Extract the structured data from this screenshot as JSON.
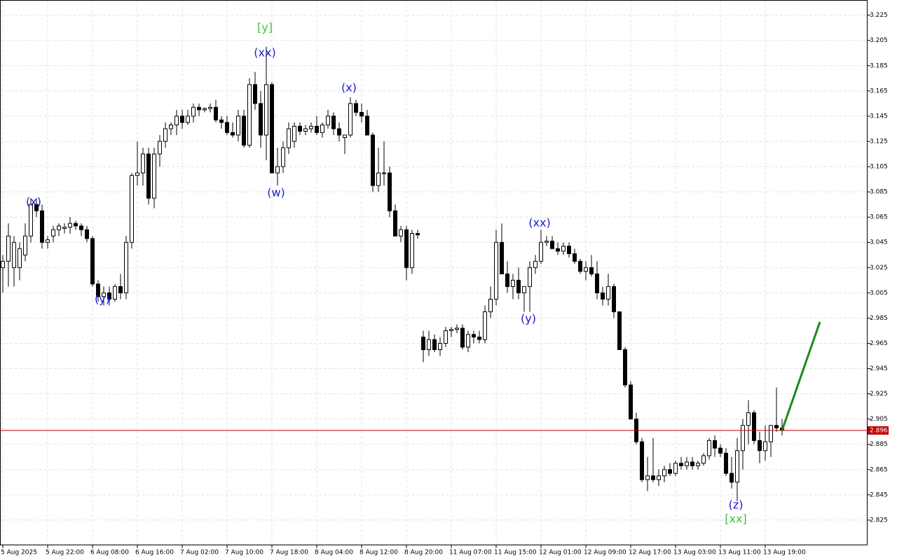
{
  "chart_data": {
    "type": "candlestick",
    "ylim": [
      2.805,
      3.237
    ],
    "yticks": [
      3.225,
      3.205,
      3.185,
      3.165,
      3.145,
      3.125,
      3.105,
      3.085,
      3.065,
      3.045,
      3.025,
      3.005,
      2.985,
      2.965,
      2.945,
      2.925,
      2.905,
      2.885,
      2.865,
      2.845,
      2.825
    ],
    "grid": true,
    "up_color": "#ffffff",
    "down_color": "#000000",
    "x_labels": [
      "5 Aug 2025",
      "5 Aug 22:00",
      "6 Aug 08:00",
      "6 Aug 16:00",
      "7 Aug 02:00",
      "7 Aug 10:00",
      "7 Aug 18:00",
      "8 Aug 04:00",
      "8 Aug 12:00",
      "8 Aug 20:00",
      "11 Aug 07:00",
      "11 Aug 15:00",
      "12 Aug 01:00",
      "12 Aug 09:00",
      "12 Aug 17:00",
      "13 Aug 03:00",
      "13 Aug 11:00",
      "13 Aug 19:00"
    ],
    "current_price": 2.896,
    "current_price_color": "#c00000",
    "forecast": {
      "values": [
        2.896,
        2.982
      ],
      "color": "#1a8a1a"
    },
    "annotations": [
      {
        "text": "(x)",
        "color": "#1a1ad6"
      },
      {
        "text": "(y)",
        "color": "#1a1ad6"
      },
      {
        "text": "[y]",
        "color": "#3cc43c"
      },
      {
        "text": "(xx)",
        "color": "#1a1ad6"
      },
      {
        "text": "(w)",
        "color": "#1a1ad6"
      },
      {
        "text": "(x)",
        "color": "#1a1ad6"
      },
      {
        "text": "(y)",
        "color": "#1a1ad6"
      },
      {
        "text": "(xx)",
        "color": "#1a1ad6"
      },
      {
        "text": "(z)",
        "color": "#1a1ad6"
      },
      {
        "text": "[xx]",
        "color": "#3cc43c"
      }
    ],
    "candles": [
      {
        "open": 3.025,
        "high": 3.035,
        "low": 3.005,
        "close": 3.03
      },
      {
        "open": 3.03,
        "high": 3.06,
        "low": 3.01,
        "close": 3.05
      },
      {
        "open": 3.025,
        "high": 3.05,
        "low": 3.01,
        "close": 3.045
      },
      {
        "open": 3.025,
        "high": 3.045,
        "low": 3.015,
        "close": 3.04
      },
      {
        "open": 3.035,
        "high": 3.06,
        "low": 3.03,
        "close": 3.05
      },
      {
        "open": 3.05,
        "high": 3.08,
        "low": 3.045,
        "close": 3.075
      },
      {
        "open": 3.075,
        "high": 3.08,
        "low": 3.065,
        "close": 3.07
      },
      {
        "open": 3.07,
        "high": 3.075,
        "low": 3.04,
        "close": 3.045
      },
      {
        "open": 3.045,
        "high": 3.05,
        "low": 3.04,
        "close": 3.047
      },
      {
        "open": 3.05,
        "high": 3.058,
        "low": 3.045,
        "close": 3.055
      },
      {
        "open": 3.055,
        "high": 3.06,
        "low": 3.05,
        "close": 3.058
      },
      {
        "open": 3.056,
        "high": 3.06,
        "low": 3.052,
        "close": 3.057
      },
      {
        "open": 3.057,
        "high": 3.065,
        "low": 3.052,
        "close": 3.06
      },
      {
        "open": 3.06,
        "high": 3.062,
        "low": 3.055,
        "close": 3.058
      },
      {
        "open": 3.058,
        "high": 3.06,
        "low": 3.05,
        "close": 3.055
      },
      {
        "open": 3.055,
        "high": 3.058,
        "low": 3.045,
        "close": 3.048
      },
      {
        "open": 3.048,
        "high": 3.05,
        "low": 3.01,
        "close": 3.012
      },
      {
        "open": 3.012,
        "high": 3.015,
        "low": 2.998,
        "close": 3.002
      },
      {
        "open": 3.002,
        "high": 3.01,
        "low": 2.995,
        "close": 3.005
      },
      {
        "open": 3.005,
        "high": 3.01,
        "low": 2.995,
        "close": 3.0
      },
      {
        "open": 3.0,
        "high": 3.012,
        "low": 2.998,
        "close": 3.01
      },
      {
        "open": 3.01,
        "high": 3.02,
        "low": 3.0,
        "close": 3.005
      },
      {
        "open": 3.005,
        "high": 3.05,
        "low": 3.0,
        "close": 3.045
      },
      {
        "open": 3.045,
        "high": 3.1,
        "low": 3.04,
        "close": 3.098
      },
      {
        "open": 3.098,
        "high": 3.125,
        "low": 3.09,
        "close": 3.1
      },
      {
        "open": 3.1,
        "high": 3.12,
        "low": 3.09,
        "close": 3.115
      },
      {
        "open": 3.115,
        "high": 3.12,
        "low": 3.075,
        "close": 3.08
      },
      {
        "open": 3.08,
        "high": 3.12,
        "low": 3.072,
        "close": 3.115
      },
      {
        "open": 3.115,
        "high": 3.13,
        "low": 3.105,
        "close": 3.125
      },
      {
        "open": 3.125,
        "high": 3.14,
        "low": 3.12,
        "close": 3.135
      },
      {
        "open": 3.135,
        "high": 3.14,
        "low": 3.13,
        "close": 3.138
      },
      {
        "open": 3.138,
        "high": 3.15,
        "low": 3.13,
        "close": 3.145
      },
      {
        "open": 3.145,
        "high": 3.15,
        "low": 3.135,
        "close": 3.14
      },
      {
        "open": 3.14,
        "high": 3.15,
        "low": 3.138,
        "close": 3.145
      },
      {
        "open": 3.145,
        "high": 3.155,
        "low": 3.14,
        "close": 3.152
      },
      {
        "open": 3.152,
        "high": 3.155,
        "low": 3.145,
        "close": 3.15
      },
      {
        "open": 3.15,
        "high": 3.152,
        "low": 3.148,
        "close": 3.151
      },
      {
        "open": 3.151,
        "high": 3.155,
        "low": 3.148,
        "close": 3.152
      },
      {
        "open": 3.152,
        "high": 3.158,
        "low": 3.14,
        "close": 3.142
      },
      {
        "open": 3.142,
        "high": 3.145,
        "low": 3.135,
        "close": 3.14
      },
      {
        "open": 3.14,
        "high": 3.145,
        "low": 3.13,
        "close": 3.132
      },
      {
        "open": 3.132,
        "high": 3.14,
        "low": 3.128,
        "close": 3.13
      },
      {
        "open": 3.13,
        "high": 3.15,
        "low": 3.125,
        "close": 3.145
      },
      {
        "open": 3.145,
        "high": 3.15,
        "low": 3.12,
        "close": 3.122
      },
      {
        "open": 3.122,
        "high": 3.175,
        "low": 3.12,
        "close": 3.17
      },
      {
        "open": 3.17,
        "high": 3.18,
        "low": 3.15,
        "close": 3.155
      },
      {
        "open": 3.155,
        "high": 3.165,
        "low": 3.12,
        "close": 3.13
      },
      {
        "open": 3.13,
        "high": 3.2,
        "low": 3.11,
        "close": 3.17
      },
      {
        "open": 3.17,
        "high": 3.172,
        "low": 3.1,
        "close": 3.1
      },
      {
        "open": 3.1,
        "high": 3.12,
        "low": 3.09,
        "close": 3.105
      },
      {
        "open": 3.105,
        "high": 3.125,
        "low": 3.1,
        "close": 3.12
      },
      {
        "open": 3.12,
        "high": 3.14,
        "low": 3.115,
        "close": 3.135
      },
      {
        "open": 3.125,
        "high": 3.14,
        "low": 3.12,
        "close": 3.137
      },
      {
        "open": 3.137,
        "high": 3.14,
        "low": 3.13,
        "close": 3.133
      },
      {
        "open": 3.133,
        "high": 3.138,
        "low": 3.13,
        "close": 3.135
      },
      {
        "open": 3.135,
        "high": 3.14,
        "low": 3.132,
        "close": 3.137
      },
      {
        "open": 3.137,
        "high": 3.145,
        "low": 3.13,
        "close": 3.132
      },
      {
        "open": 3.132,
        "high": 3.14,
        "low": 3.128,
        "close": 3.138
      },
      {
        "open": 3.138,
        "high": 3.15,
        "low": 3.135,
        "close": 3.145
      },
      {
        "open": 3.145,
        "high": 3.148,
        "low": 3.13,
        "close": 3.135
      },
      {
        "open": 3.135,
        "high": 3.14,
        "low": 3.125,
        "close": 3.13
      },
      {
        "open": 3.128,
        "high": 3.13,
        "low": 3.115,
        "close": 3.13
      },
      {
        "open": 3.13,
        "high": 3.16,
        "low": 3.128,
        "close": 3.155
      },
      {
        "open": 3.155,
        "high": 3.158,
        "low": 3.145,
        "close": 3.148
      },
      {
        "open": 3.148,
        "high": 3.155,
        "low": 3.14,
        "close": 3.145
      },
      {
        "open": 3.145,
        "high": 3.15,
        "low": 3.13,
        "close": 3.13
      },
      {
        "open": 3.13,
        "high": 3.132,
        "low": 3.085,
        "close": 3.09
      },
      {
        "open": 3.09,
        "high": 3.12,
        "low": 3.085,
        "close": 3.1
      },
      {
        "open": 3.1,
        "high": 3.125,
        "low": 3.09,
        "close": 3.1
      },
      {
        "open": 3.1,
        "high": 3.105,
        "low": 3.065,
        "close": 3.07
      },
      {
        "open": 3.07,
        "high": 3.075,
        "low": 3.05,
        "close": 3.05
      },
      {
        "open": 3.05,
        "high": 3.058,
        "low": 3.045,
        "close": 3.055
      },
      {
        "open": 3.055,
        "high": 3.058,
        "low": 3.015,
        "close": 3.025
      },
      {
        "open": 3.025,
        "high": 3.055,
        "low": 3.02,
        "close": 3.052
      },
      {
        "open": 3.052,
        "high": 3.055,
        "low": 3.048,
        "close": 3.051
      },
      {
        "open": 2.97,
        "high": 2.975,
        "low": 2.95,
        "close": 2.96
      },
      {
        "open": 2.96,
        "high": 2.975,
        "low": 2.955,
        "close": 2.968
      },
      {
        "open": 2.968,
        "high": 2.972,
        "low": 2.958,
        "close": 2.96
      },
      {
        "open": 2.96,
        "high": 2.97,
        "low": 2.955,
        "close": 2.965
      },
      {
        "open": 2.965,
        "high": 2.978,
        "low": 2.962,
        "close": 2.975
      },
      {
        "open": 2.975,
        "high": 2.978,
        "low": 2.97,
        "close": 2.976
      },
      {
        "open": 2.976,
        "high": 2.98,
        "low": 2.973,
        "close": 2.977
      },
      {
        "open": 2.977,
        "high": 2.98,
        "low": 2.96,
        "close": 2.962
      },
      {
        "open": 2.962,
        "high": 2.975,
        "low": 2.958,
        "close": 2.972
      },
      {
        "open": 2.972,
        "high": 2.975,
        "low": 2.965,
        "close": 2.97
      },
      {
        "open": 2.97,
        "high": 2.975,
        "low": 2.965,
        "close": 2.968
      },
      {
        "open": 2.968,
        "high": 2.995,
        "low": 2.965,
        "close": 2.99
      },
      {
        "open": 2.99,
        "high": 3.01,
        "low": 2.985,
        "close": 3.0
      },
      {
        "open": 3.0,
        "high": 3.055,
        "low": 2.995,
        "close": 3.045
      },
      {
        "open": 3.045,
        "high": 3.06,
        "low": 3.02,
        "close": 3.02
      },
      {
        "open": 3.02,
        "high": 3.03,
        "low": 3.005,
        "close": 3.01
      },
      {
        "open": 3.01,
        "high": 3.02,
        "low": 3.0,
        "close": 3.015
      },
      {
        "open": 3.015,
        "high": 3.025,
        "low": 3.0,
        "close": 3.005
      },
      {
        "open": 3.005,
        "high": 3.01,
        "low": 2.99,
        "close": 3.01
      },
      {
        "open": 3.01,
        "high": 3.03,
        "low": 2.99,
        "close": 3.025
      },
      {
        "open": 3.025,
        "high": 3.035,
        "low": 3.02,
        "close": 3.03
      },
      {
        "open": 3.03,
        "high": 3.055,
        "low": 3.028,
        "close": 3.045
      },
      {
        "open": 3.045,
        "high": 3.05,
        "low": 3.042,
        "close": 3.046
      },
      {
        "open": 3.046,
        "high": 3.05,
        "low": 3.04,
        "close": 3.04
      },
      {
        "open": 3.04,
        "high": 3.045,
        "low": 3.035,
        "close": 3.038
      },
      {
        "open": 3.038,
        "high": 3.045,
        "low": 3.035,
        "close": 3.042
      },
      {
        "open": 3.042,
        "high": 3.045,
        "low": 3.033,
        "close": 3.036
      },
      {
        "open": 3.036,
        "high": 3.04,
        "low": 3.028,
        "close": 3.03
      },
      {
        "open": 3.03,
        "high": 3.032,
        "low": 3.02,
        "close": 3.022
      },
      {
        "open": 3.022,
        "high": 3.03,
        "low": 3.015,
        "close": 3.025
      },
      {
        "open": 3.025,
        "high": 3.035,
        "low": 3.018,
        "close": 3.02
      },
      {
        "open": 3.02,
        "high": 3.03,
        "low": 3.0,
        "close": 3.005
      },
      {
        "open": 3.005,
        "high": 3.01,
        "low": 2.995,
        "close": 3.0
      },
      {
        "open": 3.0,
        "high": 3.02,
        "low": 2.995,
        "close": 3.01
      },
      {
        "open": 3.01,
        "high": 3.012,
        "low": 2.985,
        "close": 2.99
      },
      {
        "open": 2.99,
        "high": 2.99,
        "low": 2.96,
        "close": 2.96
      },
      {
        "open": 2.96,
        "high": 2.962,
        "low": 2.93,
        "close": 2.932
      },
      {
        "open": 2.932,
        "high": 2.935,
        "low": 2.905,
        "close": 2.905
      },
      {
        "open": 2.905,
        "high": 2.91,
        "low": 2.885,
        "close": 2.887
      },
      {
        "open": 2.887,
        "high": 2.89,
        "low": 2.855,
        "close": 2.857
      },
      {
        "open": 2.857,
        "high": 2.875,
        "low": 2.848,
        "close": 2.86
      },
      {
        "open": 2.86,
        "high": 2.89,
        "low": 2.855,
        "close": 2.857
      },
      {
        "open": 2.857,
        "high": 2.865,
        "low": 2.852,
        "close": 2.86
      },
      {
        "open": 2.86,
        "high": 2.868,
        "low": 2.855,
        "close": 2.865
      },
      {
        "open": 2.865,
        "high": 2.87,
        "low": 2.86,
        "close": 2.862
      },
      {
        "open": 2.862,
        "high": 2.872,
        "low": 2.86,
        "close": 2.87
      },
      {
        "open": 2.87,
        "high": 2.875,
        "low": 2.865,
        "close": 2.868
      },
      {
        "open": 2.868,
        "high": 2.875,
        "low": 2.865,
        "close": 2.871
      },
      {
        "open": 2.871,
        "high": 2.875,
        "low": 2.865,
        "close": 2.868
      },
      {
        "open": 2.868,
        "high": 2.872,
        "low": 2.865,
        "close": 2.87
      },
      {
        "open": 2.87,
        "high": 2.878,
        "low": 2.868,
        "close": 2.876
      },
      {
        "open": 2.876,
        "high": 2.89,
        "low": 2.873,
        "close": 2.888
      },
      {
        "open": 2.888,
        "high": 2.892,
        "low": 2.875,
        "close": 2.882
      },
      {
        "open": 2.882,
        "high": 2.885,
        "low": 2.875,
        "close": 2.878
      },
      {
        "open": 2.878,
        "high": 2.882,
        "low": 2.86,
        "close": 2.862
      },
      {
        "open": 2.862,
        "high": 2.875,
        "low": 2.85,
        "close": 2.855
      },
      {
        "open": 2.855,
        "high": 2.89,
        "low": 2.84,
        "close": 2.88
      },
      {
        "open": 2.88,
        "high": 2.905,
        "low": 2.865,
        "close": 2.9
      },
      {
        "open": 2.9,
        "high": 2.92,
        "low": 2.885,
        "close": 2.91
      },
      {
        "open": 2.91,
        "high": 2.912,
        "low": 2.885,
        "close": 2.888
      },
      {
        "open": 2.888,
        "high": 2.895,
        "low": 2.87,
        "close": 2.88
      },
      {
        "open": 2.88,
        "high": 2.9,
        "low": 2.872,
        "close": 2.887
      },
      {
        "open": 2.887,
        "high": 2.9,
        "low": 2.875,
        "close": 2.9
      },
      {
        "open": 2.9,
        "high": 2.93,
        "low": 2.895,
        "close": 2.898
      },
      {
        "open": 2.898,
        "high": 2.905,
        "low": 2.892,
        "close": 2.896
      }
    ]
  }
}
